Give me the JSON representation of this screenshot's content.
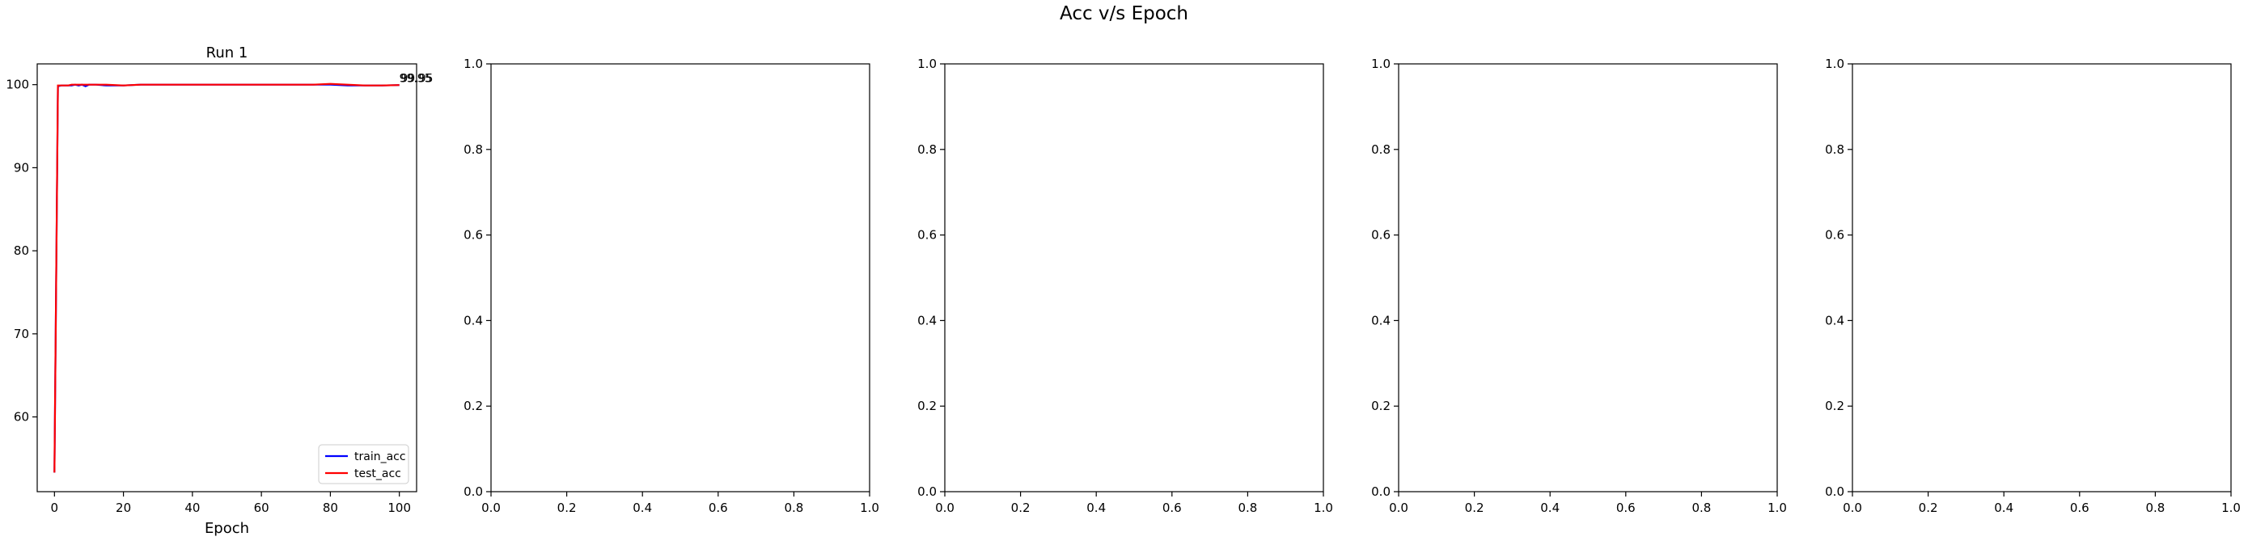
{
  "figure": {
    "title": "Acc v/s Epoch"
  },
  "chart_data": [
    {
      "type": "line",
      "title": "Run 1",
      "xlabel": "Epoch",
      "ylabel": "",
      "xlim": [
        -5,
        105
      ],
      "ylim": [
        51,
        102.5
      ],
      "xticks": [
        0,
        20,
        40,
        60,
        80,
        100
      ],
      "yticks": [
        60,
        70,
        80,
        90,
        100
      ],
      "grid": false,
      "legend": "lower-right",
      "series": [
        {
          "name": "train_acc",
          "color": "#0000ff",
          "x": [
            0,
            1,
            2,
            3,
            4,
            5,
            6,
            7,
            8,
            9,
            10,
            12,
            15,
            20,
            25,
            30,
            35,
            40,
            45,
            50,
            55,
            60,
            65,
            70,
            75,
            80,
            85,
            90,
            95,
            100
          ],
          "y": [
            53.3,
            99.8,
            99.9,
            99.9,
            99.9,
            99.9,
            100.0,
            99.9,
            100.0,
            99.8,
            100.0,
            100.0,
            99.9,
            99.9,
            100.0,
            100.0,
            100.0,
            100.0,
            100.0,
            100.0,
            100.0,
            100.0,
            100.0,
            100.0,
            100.0,
            100.0,
            99.9,
            99.9,
            99.9,
            99.95
          ]
        },
        {
          "name": "test_acc",
          "color": "#ff0000",
          "x": [
            0,
            1,
            2,
            3,
            4,
            5,
            6,
            7,
            8,
            9,
            10,
            12,
            15,
            20,
            25,
            30,
            35,
            40,
            45,
            50,
            55,
            60,
            65,
            70,
            75,
            80,
            85,
            90,
            95,
            100
          ],
          "y": [
            53.3,
            99.9,
            99.9,
            99.9,
            99.9,
            100.0,
            100.0,
            100.0,
            100.0,
            100.0,
            100.0,
            100.0,
            100.0,
            99.9,
            100.0,
            100.0,
            100.0,
            100.0,
            100.0,
            100.0,
            100.0,
            100.0,
            100.0,
            100.0,
            100.0,
            100.1,
            100.0,
            99.9,
            99.9,
            99.95
          ]
        }
      ],
      "annotations": [
        {
          "text": "99.95",
          "x": 100,
          "y": 100.3
        },
        {
          "text": "99.95",
          "x": 100.4,
          "y": 100.3
        }
      ]
    },
    {
      "type": "line",
      "title": "",
      "xlabel": "",
      "ylabel": "",
      "xlim": [
        0,
        1
      ],
      "ylim": [
        0,
        1
      ],
      "xticks": [
        0.0,
        0.2,
        0.4,
        0.6,
        0.8,
        1.0
      ],
      "yticks": [
        0.0,
        0.2,
        0.4,
        0.6,
        0.8,
        1.0
      ],
      "series": []
    },
    {
      "type": "line",
      "title": "",
      "xlabel": "",
      "ylabel": "",
      "xlim": [
        0,
        1
      ],
      "ylim": [
        0,
        1
      ],
      "xticks": [
        0.0,
        0.2,
        0.4,
        0.6,
        0.8,
        1.0
      ],
      "yticks": [
        0.0,
        0.2,
        0.4,
        0.6,
        0.8,
        1.0
      ],
      "series": []
    },
    {
      "type": "line",
      "title": "",
      "xlabel": "",
      "ylabel": "",
      "xlim": [
        0,
        1
      ],
      "ylim": [
        0,
        1
      ],
      "xticks": [
        0.0,
        0.2,
        0.4,
        0.6,
        0.8,
        1.0
      ],
      "yticks": [
        0.0,
        0.2,
        0.4,
        0.6,
        0.8,
        1.0
      ],
      "series": []
    },
    {
      "type": "line",
      "title": "",
      "xlabel": "",
      "ylabel": "",
      "xlim": [
        0,
        1
      ],
      "ylim": [
        0,
        1
      ],
      "xticks": [
        0.0,
        0.2,
        0.4,
        0.6,
        0.8,
        1.0
      ],
      "yticks": [
        0.0,
        0.2,
        0.4,
        0.6,
        0.8,
        1.0
      ],
      "series": []
    }
  ]
}
